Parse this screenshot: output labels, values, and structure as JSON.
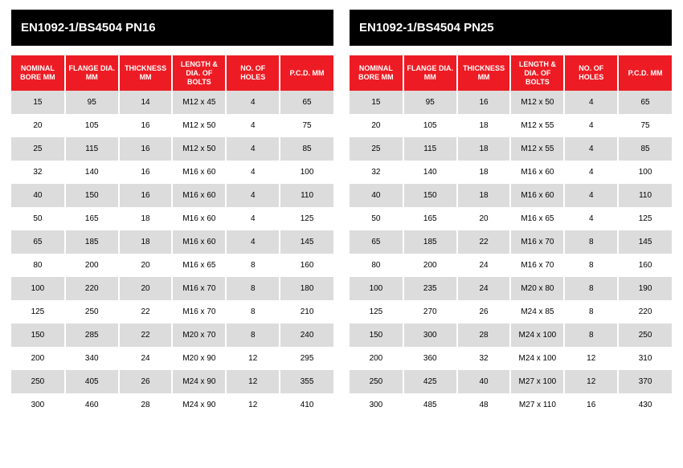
{
  "columns": [
    "NOMINAL BORE MM",
    "FLANGE DIA. MM",
    "THICKNESS MM",
    "LENGTH & DIA. OF BOLTS",
    "NO. OF HOLES",
    "P.C.D. MM"
  ],
  "colors": {
    "title_bg": "#000000",
    "title_text": "#ffffff",
    "header_bg": "#ed1c24",
    "header_text": "#ffffff",
    "row_alt_bg": "#dcdcdc",
    "row_bg": "#ffffff",
    "cell_text": "#000000"
  },
  "typography": {
    "title_fontsize": 15,
    "header_fontsize": 9,
    "cell_fontsize": 10,
    "font_family": "Arial"
  },
  "tables": [
    {
      "title": "EN1092-1/BS4504 PN16",
      "rows": [
        [
          "15",
          "95",
          "14",
          "M12 x 45",
          "4",
          "65"
        ],
        [
          "20",
          "105",
          "16",
          "M12 x 50",
          "4",
          "75"
        ],
        [
          "25",
          "115",
          "16",
          "M12 x 50",
          "4",
          "85"
        ],
        [
          "32",
          "140",
          "16",
          "M16 x 60",
          "4",
          "100"
        ],
        [
          "40",
          "150",
          "16",
          "M16 x 60",
          "4",
          "110"
        ],
        [
          "50",
          "165",
          "18",
          "M16 x 60",
          "4",
          "125"
        ],
        [
          "65",
          "185",
          "18",
          "M16 x 60",
          "4",
          "145"
        ],
        [
          "80",
          "200",
          "20",
          "M16 x 65",
          "8",
          "160"
        ],
        [
          "100",
          "220",
          "20",
          "M16 x 70",
          "8",
          "180"
        ],
        [
          "125",
          "250",
          "22",
          "M16 x 70",
          "8",
          "210"
        ],
        [
          "150",
          "285",
          "22",
          "M20 x 70",
          "8",
          "240"
        ],
        [
          "200",
          "340",
          "24",
          "M20 x 90",
          "12",
          "295"
        ],
        [
          "250",
          "405",
          "26",
          "M24 x 90",
          "12",
          "355"
        ],
        [
          "300",
          "460",
          "28",
          "M24 x 90",
          "12",
          "410"
        ]
      ]
    },
    {
      "title": "EN1092-1/BS4504 PN25",
      "rows": [
        [
          "15",
          "95",
          "16",
          "M12 x 50",
          "4",
          "65"
        ],
        [
          "20",
          "105",
          "18",
          "M12 x 55",
          "4",
          "75"
        ],
        [
          "25",
          "115",
          "18",
          "M12 x 55",
          "4",
          "85"
        ],
        [
          "32",
          "140",
          "18",
          "M16 x 60",
          "4",
          "100"
        ],
        [
          "40",
          "150",
          "18",
          "M16 x 60",
          "4",
          "110"
        ],
        [
          "50",
          "165",
          "20",
          "M16 x 65",
          "4",
          "125"
        ],
        [
          "65",
          "185",
          "22",
          "M16 x 70",
          "8",
          "145"
        ],
        [
          "80",
          "200",
          "24",
          "M16 x 70",
          "8",
          "160"
        ],
        [
          "100",
          "235",
          "24",
          "M20 x 80",
          "8",
          "190"
        ],
        [
          "125",
          "270",
          "26",
          "M24 x 85",
          "8",
          "220"
        ],
        [
          "150",
          "300",
          "28",
          "M24 x 100",
          "8",
          "250"
        ],
        [
          "200",
          "360",
          "32",
          "M24 x 100",
          "12",
          "310"
        ],
        [
          "250",
          "425",
          "40",
          "M27 x 100",
          "12",
          "370"
        ],
        [
          "300",
          "485",
          "48",
          "M27 x 110",
          "16",
          "430"
        ]
      ]
    }
  ]
}
